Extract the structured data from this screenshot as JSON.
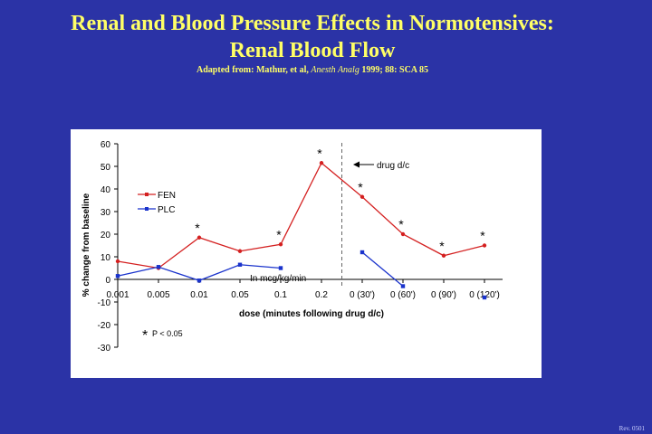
{
  "slide": {
    "title_line1": "Renal and Blood Pressure Effects in Normotensives:",
    "title_line2": "Renal Blood Flow",
    "source_prefix": "Adapted from: Mathur, et al,",
    "source_journal": "Anesth Analg",
    "source_suffix": "1999; 88: SCA 85",
    "revision": "Rev. 0501"
  },
  "colors": {
    "background": "#2b33a6",
    "title": "#ffff66",
    "fen": "#d42020",
    "plc": "#1a33cc"
  },
  "chart_data": {
    "type": "line",
    "title": "",
    "xlabel": "dose (minutes following drug d/c)",
    "ylabel": "% change from baseline",
    "ylim": [
      -30,
      60
    ],
    "yticks": [
      "60",
      "50",
      "40",
      "30",
      "20",
      "10",
      "0",
      "-10",
      "-20",
      "-30"
    ],
    "categories": [
      "0.001",
      "0.005",
      "0.01",
      "0.05",
      "0.1",
      "0.2",
      "0 (30')",
      "0 (60')",
      "0 (90')",
      "0 (120')"
    ],
    "series": [
      {
        "name": "FEN",
        "values": [
          8,
          5,
          18.5,
          12.5,
          15.5,
          51.5,
          36.5,
          20,
          10.5,
          15
        ],
        "significant": [
          false,
          false,
          true,
          false,
          true,
          true,
          true,
          true,
          true,
          true
        ]
      },
      {
        "name": "PLC",
        "values": [
          1.5,
          5.5,
          -0.5,
          6.5,
          5,
          null,
          12,
          -3,
          null,
          -8
        ]
      }
    ],
    "significance_marker": "*",
    "annotations": {
      "drug_dc": "drug d/c",
      "units": "In mcg/kg/min",
      "pvalue_mark": "*",
      "pvalue_text": "P < 0.05"
    }
  }
}
